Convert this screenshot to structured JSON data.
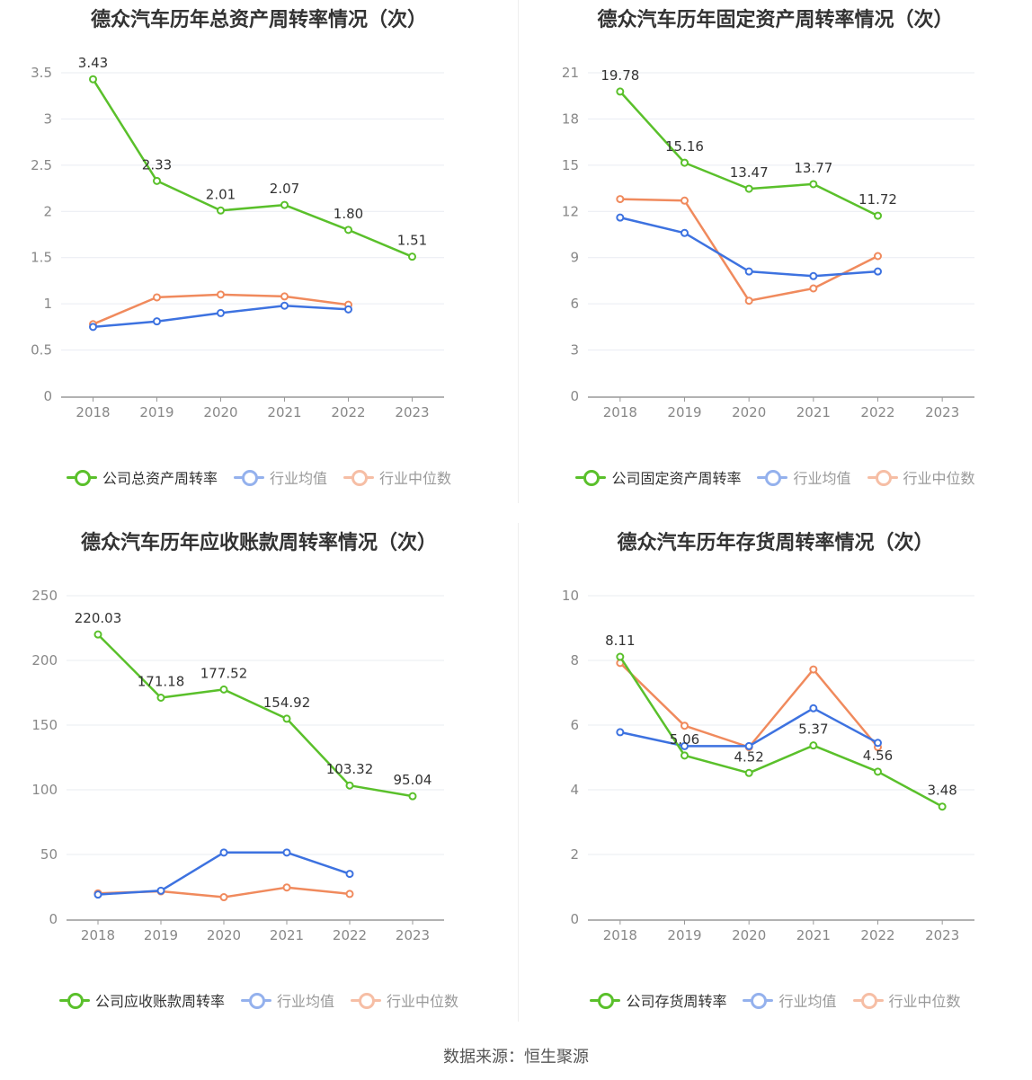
{
  "colors": {
    "company": "#5ac02b",
    "avg": "#3d72e0",
    "median": "#f08a5d",
    "grid": "#e9ecf2",
    "axis": "#999999",
    "text": "#888888"
  },
  "legend_labels": {
    "avg": "行业均值",
    "median": "行业中位数"
  },
  "source": "数据来源：恒生聚源",
  "chart_data": [
    {
      "type": "line",
      "title": "德众汽车历年总资产周转率情况（次）",
      "categories": [
        "2018",
        "2019",
        "2020",
        "2021",
        "2022",
        "2023"
      ],
      "ylim": [
        0,
        3.5
      ],
      "yticks": [
        "0",
        "0.5",
        "1",
        "1.5",
        "2",
        "2.5",
        "3",
        "3.5"
      ],
      "series": [
        {
          "name": "公司总资产周转率",
          "key": "company",
          "values": [
            3.43,
            2.33,
            2.01,
            2.07,
            1.8,
            1.51
          ],
          "labels": [
            "3.43",
            "2.33",
            "2.01",
            "2.07",
            "1.80",
            "1.51"
          ]
        },
        {
          "name": "行业均值",
          "key": "avg",
          "values": [
            0.75,
            0.81,
            0.9,
            0.98,
            0.94,
            null
          ]
        },
        {
          "name": "行业中位数",
          "key": "median",
          "values": [
            0.78,
            1.07,
            1.1,
            1.08,
            0.99,
            null
          ]
        }
      ],
      "legend": "bottom-center",
      "grid": true
    },
    {
      "type": "line",
      "title": "德众汽车历年固定资产周转率情况（次）",
      "categories": [
        "2018",
        "2019",
        "2020",
        "2021",
        "2022",
        "2023"
      ],
      "ylim": [
        0,
        21
      ],
      "yticks": [
        "0",
        "3",
        "6",
        "9",
        "12",
        "15",
        "18",
        "21"
      ],
      "series": [
        {
          "name": "公司固定资产周转率",
          "key": "company",
          "values": [
            19.78,
            15.16,
            13.47,
            13.77,
            11.72,
            null
          ],
          "labels": [
            "19.78",
            "15.16",
            "13.47",
            "13.77",
            "11.72",
            ""
          ]
        },
        {
          "name": "行业均值",
          "key": "avg",
          "values": [
            11.6,
            10.6,
            8.1,
            7.8,
            8.1,
            null
          ]
        },
        {
          "name": "行业中位数",
          "key": "median",
          "values": [
            12.8,
            12.7,
            6.2,
            7.0,
            9.1,
            null
          ]
        }
      ],
      "legend": "bottom-center",
      "grid": true
    },
    {
      "type": "line",
      "title": "德众汽车历年应收账款周转率情况（次）",
      "categories": [
        "2018",
        "2019",
        "2020",
        "2021",
        "2022",
        "2023"
      ],
      "ylim": [
        0,
        250
      ],
      "yticks": [
        "0",
        "50",
        "100",
        "150",
        "200",
        "250"
      ],
      "series": [
        {
          "name": "公司应收账款周转率",
          "key": "company",
          "values": [
            220.03,
            171.18,
            177.52,
            154.92,
            103.32,
            95.04
          ],
          "labels": [
            "220.03",
            "171.18",
            "177.52",
            "154.92",
            "103.32",
            "95.04"
          ]
        },
        {
          "name": "行业均值",
          "key": "avg",
          "values": [
            19,
            22,
            51.5,
            51.5,
            35,
            null
          ]
        },
        {
          "name": "行业中位数",
          "key": "median",
          "values": [
            20,
            21.5,
            17,
            24.5,
            19.5,
            null
          ]
        }
      ],
      "legend": "bottom-center",
      "grid": true
    },
    {
      "type": "line",
      "title": "德众汽车历年存货周转率情况（次）",
      "categories": [
        "2018",
        "2019",
        "2020",
        "2021",
        "2022",
        "2023"
      ],
      "ylim": [
        0,
        10
      ],
      "yticks": [
        "0",
        "2",
        "4",
        "6",
        "8",
        "10"
      ],
      "series": [
        {
          "name": "公司存货周转率",
          "key": "company",
          "values": [
            8.11,
            5.06,
            4.52,
            5.37,
            4.56,
            3.48
          ],
          "labels": [
            "8.11",
            "5.06",
            "4.52",
            "5.37",
            "4.56",
            "3.48"
          ]
        },
        {
          "name": "行业均值",
          "key": "avg",
          "values": [
            5.78,
            5.35,
            5.35,
            6.52,
            5.45,
            null
          ]
        },
        {
          "name": "行业中位数",
          "key": "median",
          "values": [
            7.92,
            5.98,
            5.32,
            7.72,
            5.32,
            null
          ]
        }
      ],
      "legend": "bottom-center",
      "grid": true
    }
  ]
}
